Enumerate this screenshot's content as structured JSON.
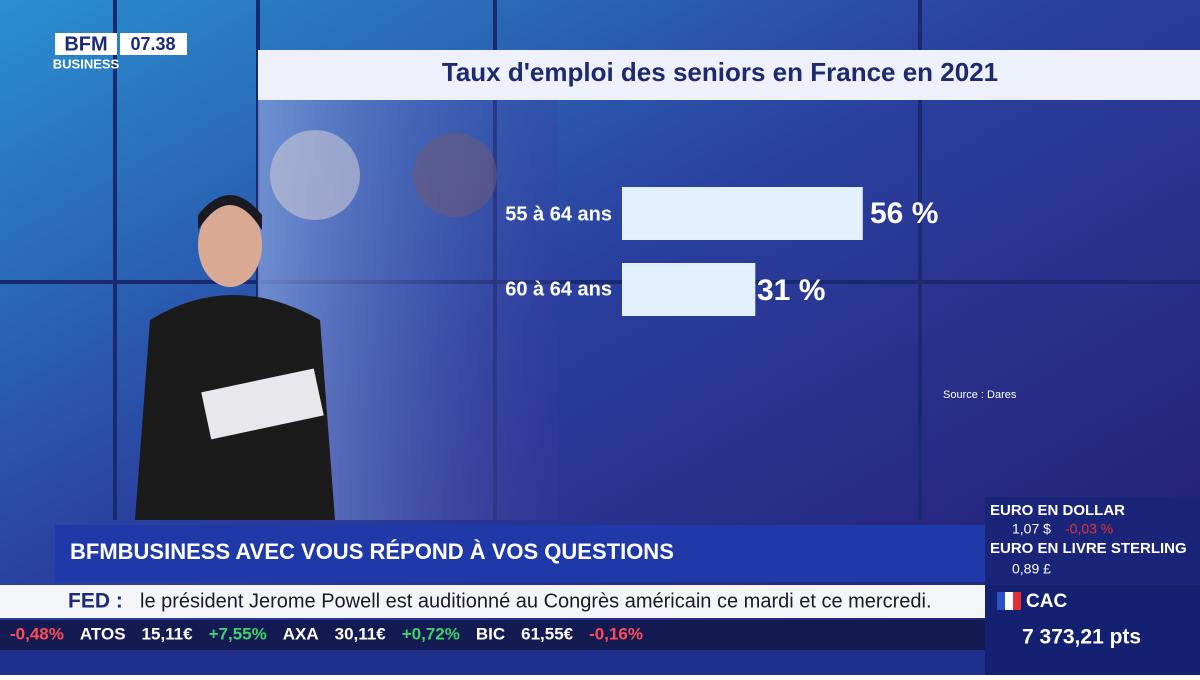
{
  "logo": {
    "brand": "BFM",
    "sub": "BUSINESS",
    "time": "07.38"
  },
  "chart_data": {
    "type": "bar",
    "orientation": "horizontal",
    "title": "Taux d'emploi des seniors en France en 2021",
    "categories": [
      "55 à 64 ans",
      "60 à 64 ans"
    ],
    "values": [
      56,
      31
    ],
    "value_labels": [
      "56 %",
      "31 %"
    ],
    "color": "#e3f0fd",
    "source": "Source : Dares"
  },
  "banner": "BFMBUSINESS AVEC VOUS RÉPOND À VOS QUESTIONS",
  "news": {
    "tag": "FED :",
    "text": "le président Jerome Powell est auditionné au Congrès américain ce mardi et ce mercredi."
  },
  "stocks": [
    "-0,48%",
    "ATOS",
    "15,11€",
    "+7,55%",
    "AXA",
    "30,11€",
    "+0,72%",
    "BIC",
    "61,55€",
    "-0,16%"
  ],
  "markets": {
    "eur_usd": {
      "label": "EURO EN DOLLAR",
      "value": "1,07 $",
      "change": "-0,03 %"
    },
    "eur_gbp": {
      "label": "EURO EN LIVRE STERLING",
      "value": "0,89 £"
    },
    "cac": {
      "label": "CAC",
      "value": "7 373,21 pts"
    }
  }
}
